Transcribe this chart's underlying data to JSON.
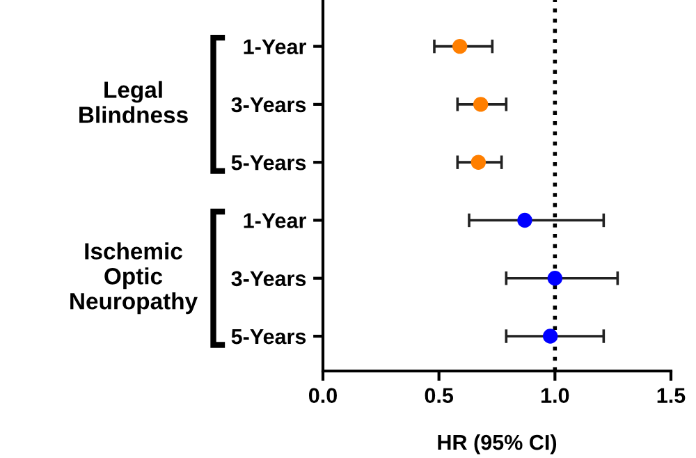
{
  "chart_data": {
    "type": "scatter",
    "orientation": "horizontal",
    "xlabel": "HR (95% CI)",
    "categories": [
      "1-Year",
      "3-Years",
      "5-Years",
      "1-Year",
      "3-Years",
      "5-Years"
    ],
    "series": [
      {
        "color": "#ff7f00",
        "values": [
          0.59,
          0.68,
          0.67,
          null,
          null,
          null
        ],
        "errors": [
          [
            0.48,
            0.73
          ],
          [
            0.58,
            0.79
          ],
          [
            0.58,
            0.77
          ],
          null,
          null,
          null
        ]
      },
      {
        "color": "#0000ff",
        "values": [
          null,
          null,
          null,
          0.87,
          1.0,
          0.98
        ],
        "errors": [
          null,
          null,
          null,
          [
            0.63,
            1.21
          ],
          [
            0.79,
            1.27
          ],
          [
            0.79,
            1.21
          ]
        ]
      }
    ],
    "xlim": [
      0,
      1.5
    ],
    "xticks": [
      {
        "value": 0,
        "label": "0.0"
      },
      {
        "value": 0.5,
        "label": "0.5"
      },
      {
        "value": 1,
        "label": "1.0"
      },
      {
        "value": 1.5,
        "label": "1.5"
      }
    ],
    "ref_lines": [
      {
        "axis": "x",
        "value": 1,
        "color": "#000000",
        "line_style": "dotted"
      }
    ],
    "annotations": [
      "Legal\nBlindness",
      "Ischemic\nOptic\nNeuropathy"
    ],
    "marker": "circle",
    "grid": false,
    "legend": false
  }
}
